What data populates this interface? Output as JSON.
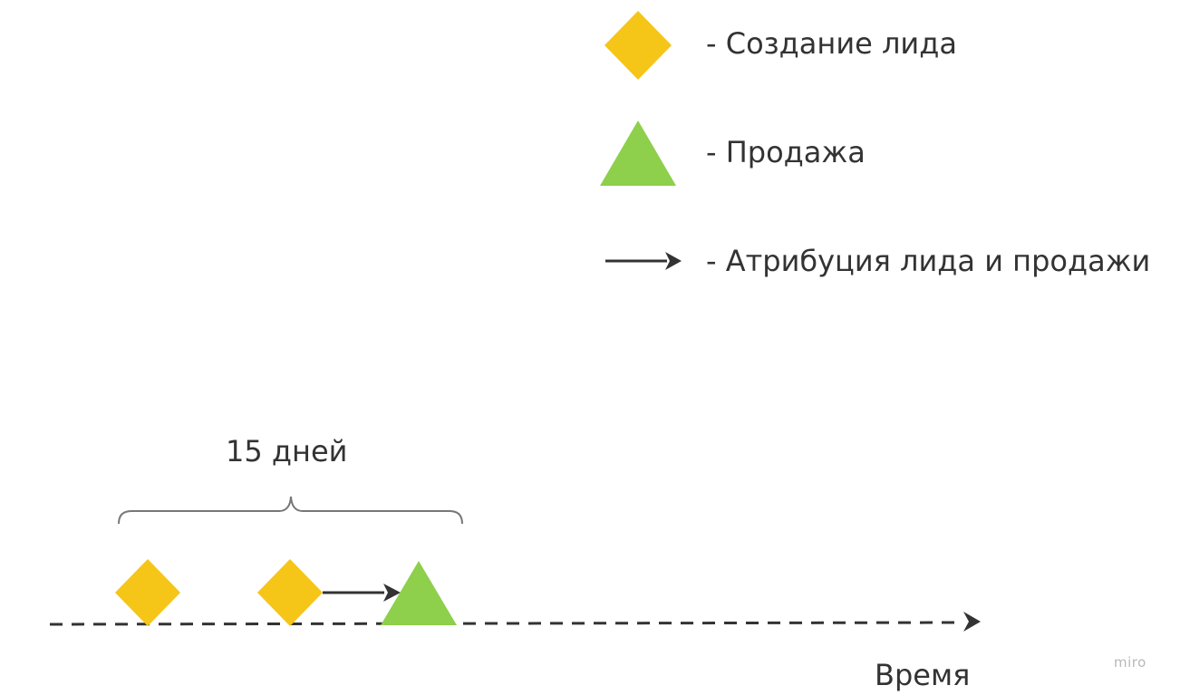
{
  "colors": {
    "lead": "#F5C518",
    "sale": "#8ECF4B",
    "line": "#333333",
    "brace": "#777777"
  },
  "legend": {
    "lead_label": "- Создание лида",
    "sale_label": "- Продажа",
    "attribution_label": "- Атрибуция лида и продажи"
  },
  "timeline": {
    "span_label": "15 дней",
    "axis_label": "Время"
  },
  "watermark": "miro"
}
